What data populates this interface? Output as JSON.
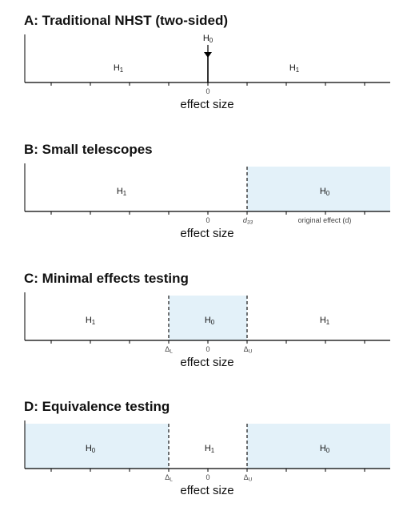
{
  "axis_title": "effect size",
  "colors": {
    "null_region": "#e3f1f9",
    "axis": "#000000"
  },
  "panels": [
    {
      "key": "A",
      "title": "A: Traditional NHST (two-sided)",
      "h0_marker": {
        "base": "H",
        "sub": "0"
      },
      "labels": [
        {
          "base": "H",
          "sub": "1"
        },
        {
          "base": "H",
          "sub": "1"
        }
      ],
      "ticks": [
        {
          "base": "0",
          "sub": ""
        }
      ]
    },
    {
      "key": "B",
      "title": "B: Small telescopes",
      "labels": [
        {
          "base": "H",
          "sub": "1"
        },
        {
          "base": "H",
          "sub": "0"
        }
      ],
      "ticks": [
        {
          "base": "0",
          "sub": ""
        },
        {
          "base": "d",
          "sub": "33"
        },
        {
          "base": "original effect (d)",
          "sub": ""
        }
      ]
    },
    {
      "key": "C",
      "title": "C: Minimal effects testing",
      "labels": [
        {
          "base": "H",
          "sub": "1"
        },
        {
          "base": "H",
          "sub": "0"
        },
        {
          "base": "H",
          "sub": "1"
        }
      ],
      "ticks": [
        {
          "base": "Δ",
          "sub": "L"
        },
        {
          "base": "0",
          "sub": ""
        },
        {
          "base": "Δ",
          "sub": "U"
        }
      ]
    },
    {
      "key": "D",
      "title": "D: Equivalence testing",
      "labels": [
        {
          "base": "H",
          "sub": "0"
        },
        {
          "base": "H",
          "sub": "1"
        },
        {
          "base": "H",
          "sub": "0"
        }
      ],
      "ticks": [
        {
          "base": "Δ",
          "sub": "L"
        },
        {
          "base": "0",
          "sub": ""
        },
        {
          "base": "Δ",
          "sub": "U"
        }
      ]
    }
  ]
}
